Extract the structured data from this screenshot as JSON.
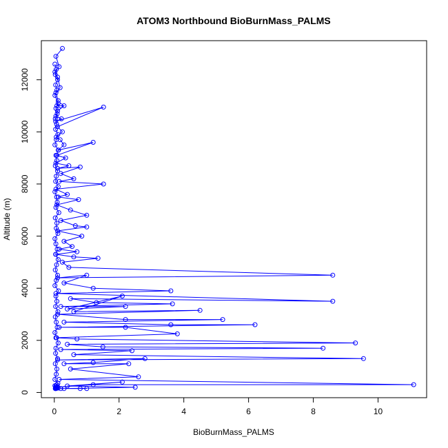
{
  "chart_data": {
    "type": "line",
    "title": "ATOM3 Northbound BioBurnMass_PALMS",
    "xlabel": "BioBurnMass_PALMS",
    "ylabel": "Altitude (m)",
    "xlim": [
      -0.4,
      11.5
    ],
    "ylim": [
      -200,
      13500
    ],
    "xticks": [
      0,
      2,
      4,
      6,
      8,
      10
    ],
    "yticks": [
      0,
      2000,
      4000,
      6000,
      8000,
      10000,
      12000
    ],
    "grid": false,
    "marker": "open-circle",
    "color": "#0000ff",
    "series": [
      {
        "x": [
          0.25,
          0.05,
          0.15,
          0.02,
          0.1,
          0.18,
          0.05,
          0.12,
          0.08,
          0.2,
          0.3,
          0.1,
          0.05,
          0.22,
          0.04,
          1.52,
          0.1,
          0.25,
          0.06,
          0.18,
          0.3,
          0.12,
          1.2,
          0.08,
          0.35,
          0.05,
          0.45,
          0.1,
          0.8,
          0.2,
          0.6,
          0.15,
          1.52,
          0.05,
          0.4,
          0.12,
          0.75,
          0.08,
          0.5,
          1.0,
          0.2,
          0.65,
          1.0,
          0.1,
          0.85,
          0.3,
          0.55,
          0.15,
          0.7,
          0.05,
          0.6,
          1.35,
          0.25,
          0.45,
          8.6,
          0.1,
          1.0,
          0.3,
          1.2,
          3.6,
          0.05,
          8.6,
          0.5,
          1.3,
          3.65,
          0.2,
          2.2,
          0.4,
          2.1,
          0.6,
          4.5,
          0.1,
          2.2,
          5.2,
          0.3,
          3.6,
          6.2,
          0.15,
          2.2,
          3.8,
          0.05,
          0.7,
          9.3,
          0.4,
          1.5,
          8.3,
          0.2,
          2.4,
          0.6,
          9.55,
          0.1,
          2.8,
          1.2,
          0.3,
          2.3,
          0.5,
          2.6,
          0.15,
          11.1,
          1.2,
          0.05,
          2.1,
          0.4,
          2.5,
          0.2,
          1.0,
          0.05,
          0.8,
          0.3
        ],
        "y": [
          13200,
          12900,
          12500,
          12300,
          12100,
          11700,
          11500,
          11200,
          11000,
          11000,
          11000,
          10800,
          10600,
          10500,
          10400,
          10950,
          10200,
          10000,
          9800,
          9700,
          9500,
          9300,
          9600,
          9100,
          9000,
          8800,
          8700,
          8600,
          8650,
          8400,
          8200,
          8100,
          8000,
          7800,
          7600,
          7500,
          7400,
          7200,
          7000,
          6800,
          6600,
          6400,
          6350,
          6200,
          6000,
          5800,
          5600,
          5500,
          5400,
          5300,
          5200,
          5150,
          5000,
          4800,
          4500,
          4400,
          4500,
          4200,
          4000,
          3900,
          3800,
          3500,
          3600,
          3450,
          3400,
          3300,
          3300,
          3200,
          3700,
          3100,
          3150,
          3000,
          2800,
          2800,
          2700,
          2600,
          2600,
          2500,
          2500,
          2250,
          2100,
          2050,
          1900,
          1850,
          1750,
          1700,
          1650,
          1600,
          1450,
          1300,
          1250,
          1300,
          1150,
          1100,
          1100,
          900,
          600,
          500,
          300,
          300,
          200,
          400,
          250,
          200,
          150,
          150,
          150,
          150,
          150
        ]
      },
      {
        "x": [
          0.02,
          0.06,
          0.03,
          0.1,
          0.04,
          0.08,
          0.02,
          0.12,
          0.05,
          0.09,
          0.03,
          0.07,
          0.04,
          0.11,
          0.06,
          0.02,
          0.13,
          0.05,
          0.08,
          0.03,
          0.1,
          0.06,
          0.04,
          0.12,
          0.02,
          0.07,
          0.09,
          0.05,
          0.14,
          0.03,
          0.08,
          0.06,
          0.11,
          0.02,
          0.05,
          0.09,
          0.04,
          0.12,
          0.07,
          0.03,
          0.1,
          0.06,
          0.02,
          0.13,
          0.05,
          0.08,
          0.04,
          0.11,
          0.03,
          0.06,
          0.09,
          0.02,
          0.07,
          0.12,
          0.05,
          0.04,
          0.1,
          0.03,
          0.08,
          0.06,
          0.02,
          0.11,
          0.05,
          0.09,
          0.04,
          0.07,
          0.03,
          0.12,
          0.06,
          0.02,
          0.08,
          0.1,
          0.05,
          0.04
        ],
        "y": [
          12600,
          12400,
          12200,
          12000,
          11800,
          11600,
          11400,
          11100,
          10900,
          10700,
          10500,
          10300,
          10100,
          9900,
          9700,
          9500,
          9300,
          9100,
          8900,
          8700,
          8500,
          8300,
          8100,
          7900,
          7700,
          7500,
          7300,
          7100,
          6900,
          6700,
          6500,
          6300,
          6100,
          5900,
          5700,
          5500,
          5300,
          5100,
          4900,
          4700,
          4500,
          4300,
          4100,
          3900,
          3700,
          3500,
          3300,
          3100,
          2900,
          2700,
          2500,
          2300,
          2100,
          1900,
          1700,
          1500,
          1300,
          1100,
          900,
          700,
          500,
          350,
          250,
          200,
          180,
          160,
          150,
          170,
          200,
          260,
          300,
          220,
          180,
          150
        ]
      }
    ]
  }
}
